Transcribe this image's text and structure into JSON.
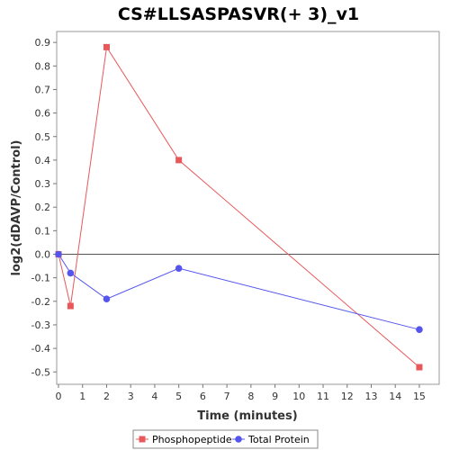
{
  "chart_data": {
    "type": "line",
    "title": "CS#LLSASPASVR(+ 3)_v1",
    "xlabel": "Time (minutes)",
    "ylabel": "log2(dDAVP/Control)",
    "xlim": [
      0,
      16
    ],
    "ylim": [
      -0.55,
      0.95
    ],
    "xticks": [
      0,
      1,
      2,
      3,
      4,
      5,
      6,
      7,
      8,
      9,
      10,
      11,
      12,
      13,
      14,
      15
    ],
    "yticks": [
      -0.5,
      -0.4,
      -0.3,
      -0.2,
      -0.1,
      0.0,
      0.1,
      0.2,
      0.3,
      0.4,
      0.5,
      0.6,
      0.7,
      0.8,
      0.9
    ],
    "ytick_labels": [
      "-0.5",
      "-0.4",
      "-0.3",
      "-0.2",
      "-0.1",
      "0.0",
      "0.1",
      "0.2",
      "0.3",
      "0.4",
      "0.5",
      "0.6",
      "0.7",
      "0.8",
      "0.9"
    ],
    "zero_line": true,
    "grid": false,
    "legend_position": "bottom",
    "series": [
      {
        "name": "Phosphopeptide",
        "color": "#e8585a",
        "marker": "square",
        "x": [
          0,
          0.5,
          2,
          5,
          15
        ],
        "y": [
          0.0,
          -0.22,
          0.88,
          0.4,
          -0.48
        ]
      },
      {
        "name": "Total Protein",
        "color": "#5555ee",
        "marker": "circle",
        "x": [
          0,
          0.5,
          2,
          5,
          15
        ],
        "y": [
          0.0,
          -0.08,
          -0.19,
          -0.06,
          -0.32
        ]
      }
    ]
  }
}
